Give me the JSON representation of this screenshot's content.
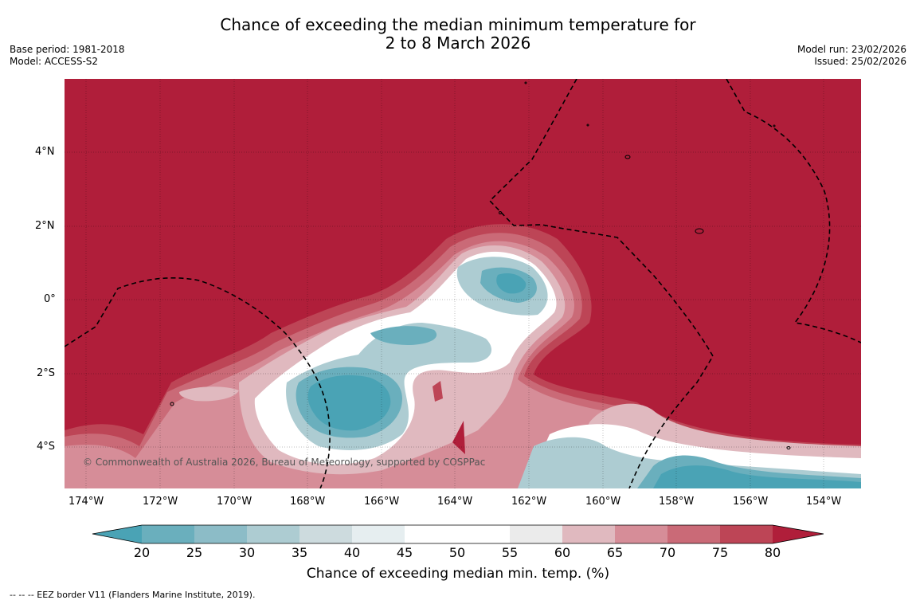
{
  "header": {
    "title_line1": "Chance of exceeding the median minimum temperature for",
    "title_line2": "2 to 8 March 2026",
    "base_period": "Base period: 1981-2018",
    "model": "Model: ACCESS-S2",
    "model_run": "Model run: 23/02/2026",
    "issued": "Issued: 25/02/2026"
  },
  "map": {
    "copyright": "© Commonwealth of Australia 2026, Bureau of Meteorology, supported by COSPPac",
    "lat_labels": [
      "4°N",
      "2°N",
      "0°",
      "2°S",
      "4°S"
    ],
    "lon_labels": [
      "174°W",
      "172°W",
      "170°W",
      "168°W",
      "166°W",
      "164°W",
      "162°W",
      "160°W",
      "158°W",
      "156°W",
      "154°W"
    ],
    "background_category": "80+",
    "colors": {
      "c_lt20": "#4aa3b5",
      "c20_25": "#6aafbd",
      "c25_30": "#8cbcc7",
      "c30_35": "#adccd2",
      "c35_40": "#cddbde",
      "c40_45": "#e6eef0",
      "c45_55": "#ffffff",
      "c55_60": "#ebebeb",
      "c60_65": "#e0b9bf",
      "c65_70": "#d68d98",
      "c70_75": "#ca6a77",
      "c75_80": "#bd4556",
      "c80p": "#b01e3a"
    }
  },
  "colorbar": {
    "ticks": [
      "20",
      "25",
      "30",
      "35",
      "40",
      "45",
      "50",
      "55",
      "60",
      "65",
      "70",
      "75",
      "80"
    ],
    "label": "Chance of exceeding median min. temp. (%)"
  },
  "legend": {
    "eez": "--  --  -- EEZ border V11 (Flanders Marine Institute, 2019)."
  }
}
